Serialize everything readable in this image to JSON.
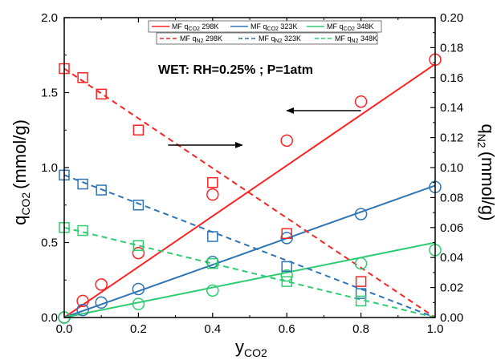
{
  "chart_data": {
    "type": "line",
    "annotation": "WET: RH=0.25% ; P=1atm",
    "xlabel": {
      "main": "y",
      "sub": "CO2"
    },
    "ylabel_left": {
      "main": "q",
      "sub": "CO2",
      "unit": "(mmol/g)"
    },
    "ylabel_right": {
      "main": "q",
      "sub": "N2",
      "unit": "(mmol/g)"
    },
    "xlim": [
      0,
      1.0
    ],
    "ylim_left": [
      0,
      2.0
    ],
    "ylim_right": [
      0,
      0.2
    ],
    "x_ticks": [
      "0.0",
      "0.2",
      "0.4",
      "0.6",
      "0.8",
      "1.0"
    ],
    "y_left_ticks": [
      "0.0",
      "0.5",
      "1.0",
      "1.5",
      "2.0"
    ],
    "y_right_ticks": [
      "0.00",
      "0.02",
      "0.04",
      "0.06",
      "0.08",
      "0.10",
      "0.12",
      "0.14",
      "0.16",
      "0.18",
      "0.20"
    ],
    "grid": false,
    "legend_position": "top-center",
    "colors": {
      "298K": "#ff2222",
      "323K": "#2e75b6",
      "348K": "#2ecc71"
    },
    "series": [
      {
        "legend_prefix": "MF q",
        "legend_sub": "CO2",
        "legend_suffix": " 298K",
        "temp": "298K",
        "axis": "left",
        "marker": "circle",
        "line": "solid",
        "x": [
          0,
          0.05,
          0.1,
          0.2,
          0.4,
          0.6,
          0.8,
          1.0
        ],
        "y": [
          0,
          0.11,
          0.22,
          0.43,
          0.82,
          1.18,
          1.44,
          1.72
        ],
        "fit": [
          [
            0,
            0
          ],
          [
            1.0,
            1.69
          ]
        ]
      },
      {
        "legend_prefix": "MF q",
        "legend_sub": "CO2",
        "legend_suffix": " 323K",
        "temp": "323K",
        "axis": "left",
        "marker": "circle",
        "line": "solid",
        "x": [
          0,
          0.05,
          0.1,
          0.2,
          0.4,
          0.6,
          0.8,
          1.0
        ],
        "y": [
          0,
          0.05,
          0.1,
          0.19,
          0.37,
          0.53,
          0.69,
          0.87
        ],
        "fit": [
          [
            0,
            0
          ],
          [
            1.0,
            0.88
          ]
        ]
      },
      {
        "legend_prefix": "MF q",
        "legend_sub": "CO2",
        "legend_suffix": " 348K",
        "temp": "348K",
        "axis": "left",
        "marker": "circle",
        "line": "solid",
        "x": [
          0,
          0.2,
          0.4,
          0.6,
          0.8,
          1.0
        ],
        "y": [
          0,
          0.09,
          0.18,
          0.28,
          0.36,
          0.45
        ],
        "fit": [
          [
            0,
            0
          ],
          [
            1.0,
            0.5
          ]
        ]
      },
      {
        "legend_prefix": "MF q",
        "legend_sub": "N2",
        "legend_suffix": " 298K",
        "temp": "298K",
        "axis": "right",
        "marker": "square",
        "line": "dashed",
        "x": [
          0,
          0.05,
          0.1,
          0.2,
          0.4,
          0.6,
          0.8
        ],
        "y": [
          0.166,
          0.16,
          0.149,
          0.125,
          0.09,
          0.056,
          0.024
        ],
        "fit": [
          [
            0,
            0.166
          ],
          [
            1.0,
            0
          ]
        ]
      },
      {
        "legend_prefix": "MF q",
        "legend_sub": "N2",
        "legend_suffix": " 323K",
        "temp": "323K",
        "axis": "right",
        "marker": "square",
        "line": "dashed",
        "x": [
          0,
          0.05,
          0.1,
          0.2,
          0.4,
          0.6,
          0.8
        ],
        "y": [
          0.095,
          0.089,
          0.085,
          0.075,
          0.054,
          0.034,
          0.016
        ],
        "fit": [
          [
            0,
            0.095
          ],
          [
            1.0,
            0
          ]
        ]
      },
      {
        "legend_prefix": "MF q",
        "legend_sub": "N2",
        "legend_suffix": " 348K",
        "temp": "348K",
        "axis": "right",
        "marker": "square",
        "line": "dashed",
        "x": [
          0,
          0.05,
          0.2,
          0.4,
          0.6,
          0.8
        ],
        "y": [
          0.06,
          0.058,
          0.048,
          0.036,
          0.024,
          0.011
        ],
        "fit": [
          [
            0,
            0.06
          ],
          [
            1.0,
            0
          ]
        ]
      }
    ],
    "arrows": [
      {
        "points_to": "left",
        "from": [
          0.8,
          1.38
        ],
        "to": [
          0.6,
          1.38
        ]
      },
      {
        "points_to": "right",
        "from": [
          0.28,
          1.15
        ],
        "to": [
          0.48,
          1.15
        ]
      }
    ]
  }
}
